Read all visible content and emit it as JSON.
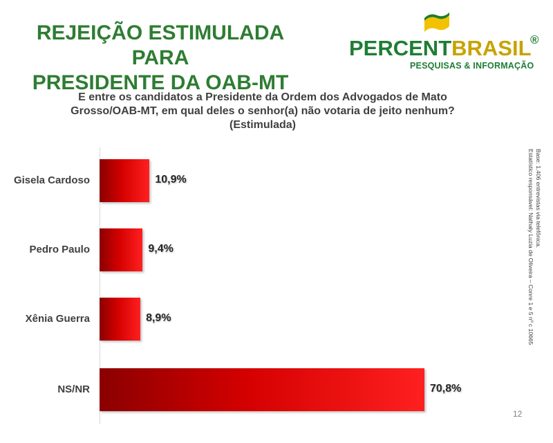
{
  "header": {
    "title_line1": "REJEIÇÃO ESTIMULADA PARA",
    "title_line2": "PRESIDENTE DA OAB-MT"
  },
  "logo": {
    "name_part1": "PERCENT",
    "name_part2": "BRASIL",
    "registered": "®",
    "tagline": "PESQUISAS & INFORMAÇÃO"
  },
  "question": {
    "line1": "E entre os candidatos a Presidente da Ordem dos Advogados de Mato",
    "line2": "Grosso/OAB-MT, em qual deles o senhor(a) não votaria de jeito nenhum?",
    "line3": "(Estimulada)"
  },
  "side_note": {
    "line1": "Base: 1.406 entrevistas via telefônica.",
    "line2": "Estatístico responsável: Nathaly Luzia de Oliveira – Conre 1 e 5 nº c 10665"
  },
  "page_number": "12",
  "colors": {
    "title": "#2e7d32",
    "bar_dark": "#8b0000",
    "bar_light": "#ff2020",
    "brand_green": "#1e7d34",
    "brand_gold": "#c8a200"
  },
  "chart_data": {
    "type": "bar",
    "orientation": "horizontal",
    "categories": [
      "Gisela Cardoso",
      "Pedro Paulo",
      "Xênia Guerra",
      "NS/NR"
    ],
    "values": [
      10.9,
      9.4,
      8.9,
      70.8
    ],
    "value_labels": [
      "10,9%",
      "9,4%",
      "8,9%",
      "70,8%"
    ],
    "unit": "%",
    "xlim": [
      0,
      80
    ],
    "grid": false,
    "legend": "none"
  }
}
